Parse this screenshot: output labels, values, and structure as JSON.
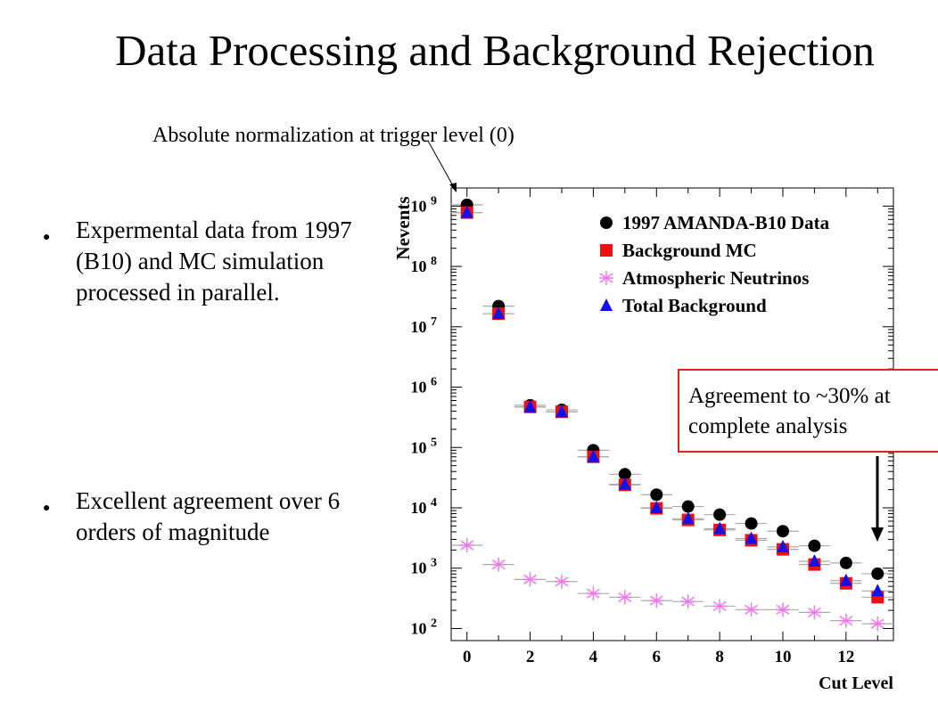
{
  "slide": {
    "title": "Data Processing and Background Rejection",
    "annotation": "Absolute normalization at trigger level (0)",
    "bullets": [
      "Expermental data from 1997 (B10) and MC simulation processed in parallel.",
      "Excellent agreement over 6 orders of magnitude"
    ],
    "agreement_box": {
      "line1": "Agreement to ~30% at",
      "line2": "complete analysis"
    }
  },
  "colors": {
    "data": "#000000",
    "background_mc": "#ee1111",
    "atmospheric_neutrinos": "#ee77ee",
    "total_background": "#1111ee",
    "box_border": "#e2231a"
  },
  "chart_data": {
    "type": "scatter",
    "xlabel": "Cut Level",
    "ylabel": "Nevents",
    "x_ticks": [
      "0",
      "2",
      "4",
      "6",
      "8",
      "10",
      "12"
    ],
    "y_ticks": [
      {
        "base": "10",
        "exp": "2"
      },
      {
        "base": "10",
        "exp": "3"
      },
      {
        "base": "10",
        "exp": "4"
      },
      {
        "base": "10",
        "exp": "5"
      },
      {
        "base": "10",
        "exp": "6"
      },
      {
        "base": "10",
        "exp": "7"
      },
      {
        "base": "10",
        "exp": "8"
      },
      {
        "base": "10",
        "exp": "9"
      }
    ],
    "xlim": [
      -0.5,
      13.5
    ],
    "ylim_log10": [
      1.8,
      9.3
    ],
    "y_scale": "log",
    "legend_position": "top-right",
    "x": [
      0,
      1,
      2,
      3,
      4,
      5,
      6,
      7,
      8,
      9,
      10,
      11,
      12,
      13
    ],
    "series": [
      {
        "name": "1997 AMANDA-B10 Data",
        "marker": "circle",
        "values": [
          1050000000.0,
          22000000.0,
          500000.0,
          420000.0,
          90000.0,
          36000.0,
          16500.0,
          10500.0,
          7700.0,
          5500.0,
          4100.0,
          2350.0,
          1220.0,
          810.0
        ]
      },
      {
        "name": "Background MC",
        "marker": "square",
        "values": [
          780000000.0,
          16500000.0,
          470000.0,
          390000.0,
          70000.0,
          24000.0,
          9800.0,
          6300.0,
          4300.0,
          2900.0,
          2050.0,
          1150.0,
          560.0,
          330.0
        ]
      },
      {
        "name": "Atmospheric Neutrinos",
        "marker": "asterisk",
        "values": [
          2400.0,
          1150.0,
          650.0,
          600.0,
          380.0,
          330.0,
          290.0,
          280.0,
          235.0,
          205.0,
          205.0,
          185.0,
          135.0,
          120.0
        ]
      },
      {
        "name": "Total Background",
        "marker": "triangle",
        "values": [
          780000000.0,
          16500000.0,
          470000.0,
          390000.0,
          70000.0,
          24500.0,
          10000.0,
          6600.0,
          4500.0,
          3100.0,
          2250.0,
          1300.0,
          620.0,
          420.0
        ]
      }
    ]
  }
}
